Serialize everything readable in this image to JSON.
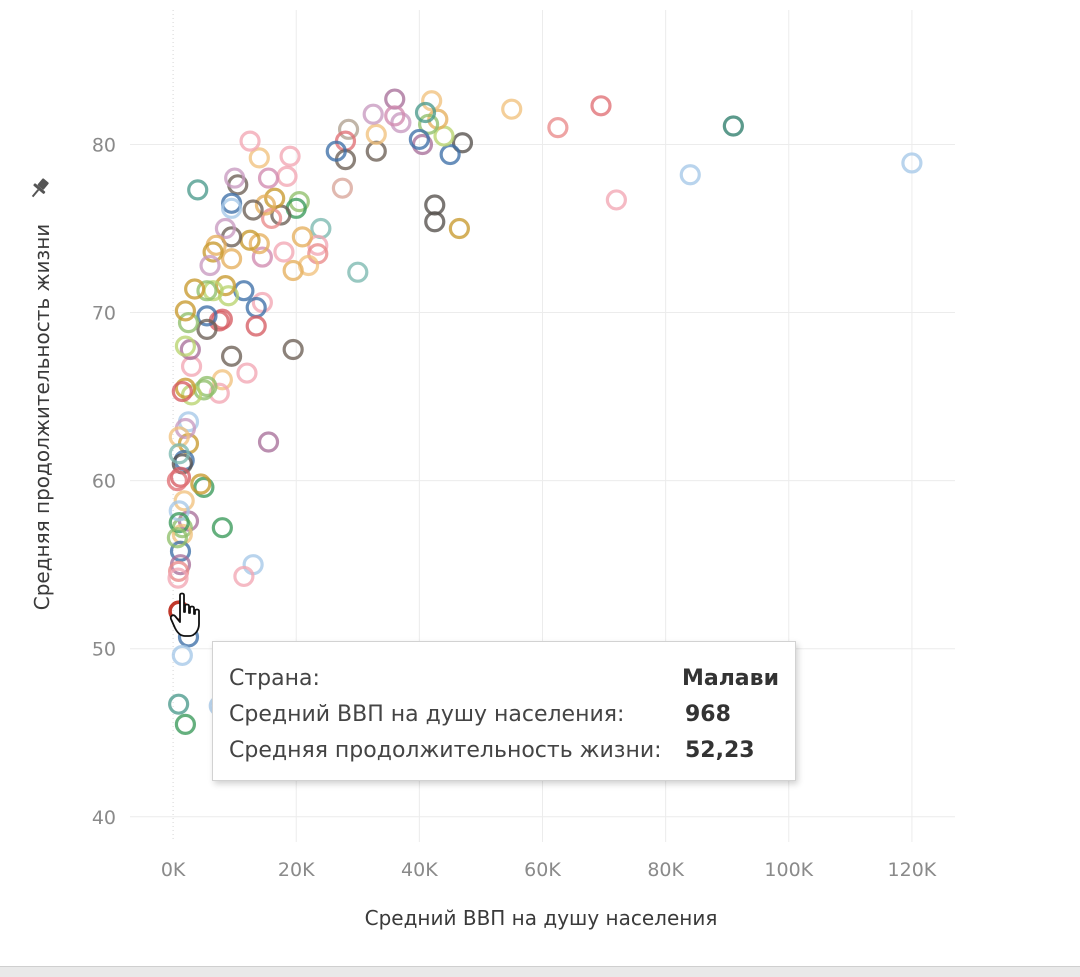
{
  "chart_data": {
    "type": "scatter",
    "xlabel": "Средний ВВП на душу населения",
    "ylabel": "Средняя продолжительность жизни",
    "xlim": [
      -7000,
      127000
    ],
    "ylim": [
      38.5,
      88
    ],
    "xticks": [
      0,
      20000,
      40000,
      60000,
      80000,
      100000,
      120000
    ],
    "xtick_labels": [
      "0K",
      "20K",
      "40K",
      "60K",
      "80K",
      "100K",
      "120K"
    ],
    "yticks": [
      40,
      50,
      60,
      70,
      80
    ],
    "ytick_labels": [
      "40",
      "50",
      "60",
      "70",
      "80"
    ],
    "grid": true,
    "marker": "open-circle",
    "points": [
      {
        "x": 120000,
        "y": 78.9,
        "c": "#a5c8e8"
      },
      {
        "x": 91000,
        "y": 81.1,
        "c": "#2e7d6b"
      },
      {
        "x": 84000,
        "y": 78.2,
        "c": "#a5c8e8"
      },
      {
        "x": 72000,
        "y": 76.7,
        "c": "#f2a6b4"
      },
      {
        "x": 69500,
        "y": 82.3,
        "c": "#e07075"
      },
      {
        "x": 62500,
        "y": 81.0,
        "c": "#e98b8b"
      },
      {
        "x": 55000,
        "y": 82.1,
        "c": "#f1c27d"
      },
      {
        "x": 47000,
        "y": 80.1,
        "c": "#55504b"
      },
      {
        "x": 46500,
        "y": 75.0,
        "c": "#c89a2e"
      },
      {
        "x": 45000,
        "y": 79.4,
        "c": "#3d6fa8"
      },
      {
        "x": 44000,
        "y": 80.5,
        "c": "#b8d36e"
      },
      {
        "x": 43000,
        "y": 81.5,
        "c": "#e5b05e"
      },
      {
        "x": 42500,
        "y": 76.4,
        "c": "#55504b"
      },
      {
        "x": 42500,
        "y": 75.4,
        "c": "#55504b"
      },
      {
        "x": 42000,
        "y": 82.6,
        "c": "#f1c27d"
      },
      {
        "x": 41500,
        "y": 81.2,
        "c": "#8fbf6a"
      },
      {
        "x": 41000,
        "y": 81.9,
        "c": "#4a9a8c"
      },
      {
        "x": 40500,
        "y": 80.0,
        "c": "#a86f9a"
      },
      {
        "x": 40000,
        "y": 80.3,
        "c": "#3d6fa8"
      },
      {
        "x": 37000,
        "y": 81.3,
        "c": "#c89ac0"
      },
      {
        "x": 36000,
        "y": 82.7,
        "c": "#a86f9a"
      },
      {
        "x": 36000,
        "y": 81.7,
        "c": "#d18bb0"
      },
      {
        "x": 33000,
        "y": 79.6,
        "c": "#6b5f55"
      },
      {
        "x": 33000,
        "y": 80.6,
        "c": "#f1c27d"
      },
      {
        "x": 32500,
        "y": 81.8,
        "c": "#c89ac0"
      },
      {
        "x": 30000,
        "y": 72.4,
        "c": "#7bb8b0"
      },
      {
        "x": 28500,
        "y": 80.9,
        "c": "#b0a090"
      },
      {
        "x": 28000,
        "y": 80.2,
        "c": "#e07075"
      },
      {
        "x": 28000,
        "y": 79.1,
        "c": "#6b5f55"
      },
      {
        "x": 27500,
        "y": 77.4,
        "c": "#d8a59a"
      },
      {
        "x": 26500,
        "y": 79.6,
        "c": "#3d6fa8"
      },
      {
        "x": 24000,
        "y": 75.0,
        "c": "#7bb8b0"
      },
      {
        "x": 23500,
        "y": 74.0,
        "c": "#f2a6b4"
      },
      {
        "x": 23500,
        "y": 73.5,
        "c": "#e98b8b"
      },
      {
        "x": 22000,
        "y": 72.8,
        "c": "#f1c27d"
      },
      {
        "x": 21000,
        "y": 74.5,
        "c": "#e5b05e"
      },
      {
        "x": 20500,
        "y": 76.6,
        "c": "#8fbf6a"
      },
      {
        "x": 20000,
        "y": 76.2,
        "c": "#3a9a5a"
      },
      {
        "x": 19500,
        "y": 72.5,
        "c": "#e5b05e"
      },
      {
        "x": 19500,
        "y": 67.8,
        "c": "#6b5f55"
      },
      {
        "x": 19000,
        "y": 79.3,
        "c": "#f2a6b4"
      },
      {
        "x": 18500,
        "y": 78.1,
        "c": "#f2a6b4"
      },
      {
        "x": 18000,
        "y": 73.6,
        "c": "#f2a6b4"
      },
      {
        "x": 17500,
        "y": 75.8,
        "c": "#6b5f55"
      },
      {
        "x": 16500,
        "y": 76.8,
        "c": "#c89a2e"
      },
      {
        "x": 16000,
        "y": 75.6,
        "c": "#e98b8b"
      },
      {
        "x": 15500,
        "y": 78.0,
        "c": "#d18bb0"
      },
      {
        "x": 15500,
        "y": 62.3,
        "c": "#a86f9a"
      },
      {
        "x": 15000,
        "y": 76.4,
        "c": "#e5b05e"
      },
      {
        "x": 14500,
        "y": 73.3,
        "c": "#d18bb0"
      },
      {
        "x": 14500,
        "y": 70.6,
        "c": "#f2a6b4"
      },
      {
        "x": 14000,
        "y": 79.2,
        "c": "#f1c27d"
      },
      {
        "x": 14000,
        "y": 74.1,
        "c": "#e5b05e"
      },
      {
        "x": 13500,
        "y": 70.3,
        "c": "#3d6fa8"
      },
      {
        "x": 13500,
        "y": 69.2,
        "c": "#d65c63"
      },
      {
        "x": 13000,
        "y": 76.1,
        "c": "#6b5f55"
      },
      {
        "x": 13000,
        "y": 55.0,
        "c": "#a5c8e8"
      },
      {
        "x": 12500,
        "y": 80.2,
        "c": "#f2a6b4"
      },
      {
        "x": 12500,
        "y": 74.3,
        "c": "#c89a2e"
      },
      {
        "x": 12000,
        "y": 66.4,
        "c": "#f2a6b4"
      },
      {
        "x": 11500,
        "y": 71.3,
        "c": "#3d6fa8"
      },
      {
        "x": 11500,
        "y": 54.3,
        "c": "#f2a6b4"
      },
      {
        "x": 10500,
        "y": 77.6,
        "c": "#6b5f55"
      },
      {
        "x": 10000,
        "y": 78.0,
        "c": "#c89ac0"
      },
      {
        "x": 9500,
        "y": 76.5,
        "c": "#3d6fa8"
      },
      {
        "x": 9500,
        "y": 76.2,
        "c": "#a5c8e8"
      },
      {
        "x": 9500,
        "y": 74.5,
        "c": "#6b5f55"
      },
      {
        "x": 9500,
        "y": 73.2,
        "c": "#e5b05e"
      },
      {
        "x": 9500,
        "y": 67.4,
        "c": "#6b5f55"
      },
      {
        "x": 9000,
        "y": 71.0,
        "c": "#b8d36e"
      },
      {
        "x": 8500,
        "y": 75.0,
        "c": "#c89ac0"
      },
      {
        "x": 8500,
        "y": 71.6,
        "c": "#c89a2e"
      },
      {
        "x": 8000,
        "y": 69.6,
        "c": "#d65c63"
      },
      {
        "x": 8000,
        "y": 66.0,
        "c": "#f1c27d"
      },
      {
        "x": 8000,
        "y": 57.2,
        "c": "#3a9a5a"
      },
      {
        "x": 7500,
        "y": 69.5,
        "c": "#d65c63"
      },
      {
        "x": 7500,
        "y": 65.2,
        "c": "#f2a6b4"
      },
      {
        "x": 7500,
        "y": 46.6,
        "c": "#a5c8e8"
      },
      {
        "x": 7000,
        "y": 74.0,
        "c": "#e5b05e"
      },
      {
        "x": 6500,
        "y": 73.6,
        "c": "#c89a2e"
      },
      {
        "x": 6500,
        "y": 71.3,
        "c": "#b8d36e"
      },
      {
        "x": 6000,
        "y": 72.8,
        "c": "#c89ac0"
      },
      {
        "x": 5500,
        "y": 71.3,
        "c": "#8fbf6a"
      },
      {
        "x": 5500,
        "y": 69.8,
        "c": "#3d6fa8"
      },
      {
        "x": 5500,
        "y": 69.0,
        "c": "#6b5f55"
      },
      {
        "x": 5500,
        "y": 65.6,
        "c": "#8fbf6a"
      },
      {
        "x": 5000,
        "y": 65.4,
        "c": "#8fbf6a"
      },
      {
        "x": 5000,
        "y": 59.6,
        "c": "#3a9a5a"
      },
      {
        "x": 4500,
        "y": 59.8,
        "c": "#c89a2e"
      },
      {
        "x": 4000,
        "y": 77.3,
        "c": "#4a9a8c"
      },
      {
        "x": 3500,
        "y": 71.4,
        "c": "#c89a2e"
      },
      {
        "x": 3000,
        "y": 66.8,
        "c": "#f2a6b4"
      },
      {
        "x": 3000,
        "y": 65.1,
        "c": "#b8d36e"
      },
      {
        "x": 2800,
        "y": 67.8,
        "c": "#a86f9a"
      },
      {
        "x": 2500,
        "y": 69.4,
        "c": "#8fbf6a"
      },
      {
        "x": 2500,
        "y": 63.5,
        "c": "#a5c8e8"
      },
      {
        "x": 2500,
        "y": 62.2,
        "c": "#c89a2e"
      },
      {
        "x": 2500,
        "y": 57.6,
        "c": "#a86f9a"
      },
      {
        "x": 2000,
        "y": 70.1,
        "c": "#c89a2e"
      },
      {
        "x": 2000,
        "y": 68.0,
        "c": "#b8d36e"
      },
      {
        "x": 2000,
        "y": 65.5,
        "c": "#c89a2e"
      },
      {
        "x": 2000,
        "y": 63.1,
        "c": "#c89ac0"
      },
      {
        "x": 2000,
        "y": 45.5,
        "c": "#3a9a5a"
      },
      {
        "x": 2500,
        "y": 50.7,
        "c": "#3d6fa8"
      },
      {
        "x": 1800,
        "y": 61.2,
        "c": "#3d6fa8"
      },
      {
        "x": 1800,
        "y": 58.8,
        "c": "#f1c27d"
      },
      {
        "x": 1500,
        "y": 65.3,
        "c": "#d65c63"
      },
      {
        "x": 1500,
        "y": 61.0,
        "c": "#55504b"
      },
      {
        "x": 1500,
        "y": 57.2,
        "c": "#8fbf6a"
      },
      {
        "x": 1500,
        "y": 56.8,
        "c": "#f1c27d"
      },
      {
        "x": 1200,
        "y": 60.2,
        "c": "#d65c63"
      },
      {
        "x": 1200,
        "y": 55.8,
        "c": "#3d6fa8"
      },
      {
        "x": 1200,
        "y": 55.0,
        "c": "#a86f9a"
      },
      {
        "x": 1000,
        "y": 62.6,
        "c": "#f1c27d"
      },
      {
        "x": 1000,
        "y": 61.6,
        "c": "#7bb8b0"
      },
      {
        "x": 1000,
        "y": 58.2,
        "c": "#a5c8e8"
      },
      {
        "x": 1000,
        "y": 57.5,
        "c": "#3a9a5a"
      },
      {
        "x": 968,
        "y": 52.23,
        "c": "#d65c63"
      },
      {
        "x": 900,
        "y": 54.6,
        "c": "#e98b8b"
      },
      {
        "x": 800,
        "y": 54.2,
        "c": "#f2a6b4"
      },
      {
        "x": 700,
        "y": 60.0,
        "c": "#e07075"
      },
      {
        "x": 700,
        "y": 56.6,
        "c": "#8fbf6a"
      },
      {
        "x": 1500,
        "y": 49.6,
        "c": "#a5c8e8"
      },
      {
        "x": 900,
        "y": 46.7,
        "c": "#4a9a8c"
      }
    ],
    "highlight": {
      "x": 968,
      "y": 52.23
    }
  },
  "tooltip": {
    "rows": [
      {
        "label": "Страна:",
        "value": "Малави"
      },
      {
        "label": "Средний ВВП на душу населения:",
        "value": "968"
      },
      {
        "label": "Средняя продолжительность жизни:",
        "value": "52,23"
      }
    ]
  },
  "icons": {
    "pin": "pin-icon",
    "cursor": "hand-pointer-icon"
  }
}
